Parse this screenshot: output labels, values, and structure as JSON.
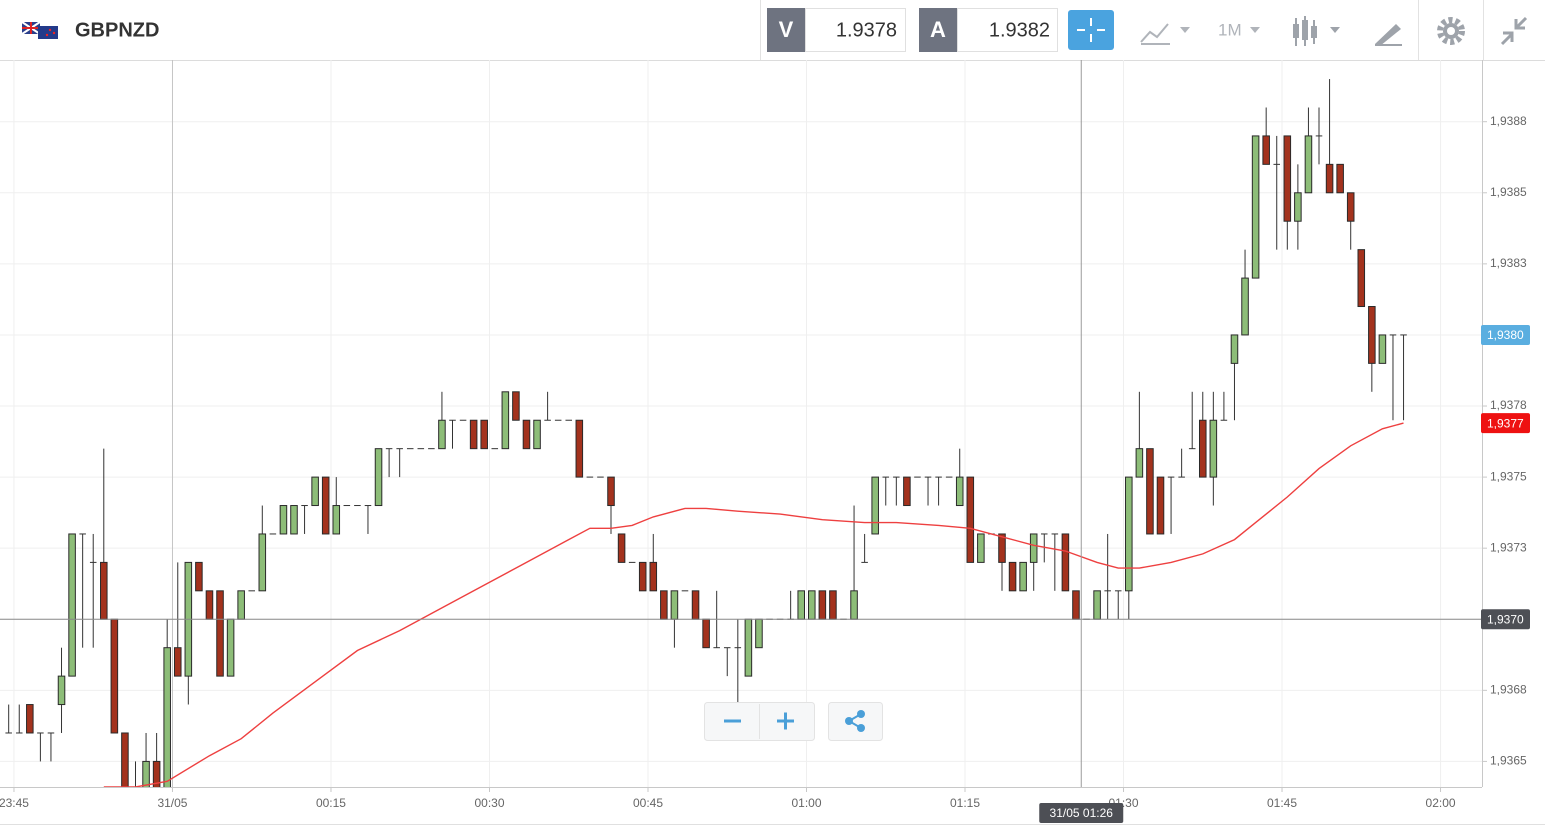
{
  "header": {
    "symbol": "GBPNZD",
    "sell_label": "V",
    "sell_price": "1.9378",
    "buy_label": "A",
    "buy_price": "1.9382",
    "interval": "1M"
  },
  "chart_data": {
    "type": "candlestick",
    "x": [
      "23:44",
      "23:45",
      "23:46",
      "23:47",
      "23:48",
      "23:49",
      "23:50",
      "23:51",
      "23:52",
      "23:53",
      "23:54",
      "23:55",
      "23:56",
      "23:57",
      "23:58",
      "23:59",
      "00:00",
      "00:01",
      "00:02",
      "00:03",
      "00:04",
      "00:05",
      "00:06",
      "00:07",
      "00:08",
      "00:09",
      "00:10",
      "00:11",
      "00:12",
      "00:13",
      "00:14",
      "00:15",
      "00:16",
      "00:17",
      "00:18",
      "00:19",
      "00:20",
      "00:21",
      "00:22",
      "00:23",
      "00:24",
      "00:25",
      "00:26",
      "00:27",
      "00:28",
      "00:29",
      "00:30",
      "00:31",
      "00:32",
      "00:33",
      "00:34",
      "00:35",
      "00:36",
      "00:37",
      "00:38",
      "00:39",
      "00:40",
      "00:41",
      "00:42",
      "00:43",
      "00:44",
      "00:45",
      "00:46",
      "00:47",
      "00:48",
      "00:49",
      "00:50",
      "00:51",
      "00:52",
      "00:53",
      "00:54",
      "00:55",
      "00:56",
      "00:57",
      "00:58",
      "00:59",
      "01:00",
      "01:01",
      "01:02",
      "01:03",
      "01:04",
      "01:05",
      "01:06",
      "01:07",
      "01:08",
      "01:09",
      "01:10",
      "01:11",
      "01:12",
      "01:13",
      "01:14",
      "01:15",
      "01:16",
      "01:17",
      "01:18",
      "01:19",
      "01:20",
      "01:21",
      "01:22",
      "01:23",
      "01:24",
      "01:25",
      "01:26",
      "01:27",
      "01:28",
      "01:29",
      "01:30",
      "01:31",
      "01:32",
      "01:33",
      "01:34",
      "01:35",
      "01:36",
      "01:37",
      "01:38",
      "01:39",
      "01:40",
      "01:41",
      "01:42",
      "01:43",
      "01:44",
      "01:45",
      "01:46",
      "01:47",
      "01:48",
      "01:49",
      "01:50",
      "01:51",
      "01:52",
      "01:53",
      "01:54",
      "01:55",
      "01:56"
    ],
    "open": [
      1.9366,
      1.9366,
      1.9367,
      1.9366,
      1.9366,
      1.9367,
      1.9368,
      1.9373,
      1.9372,
      1.9372,
      1.937,
      1.9366,
      1.9364,
      1.9364,
      1.9365,
      1.9364,
      1.9369,
      1.9368,
      1.9372,
      1.9371,
      1.9371,
      1.9368,
      1.937,
      1.9371,
      1.9371,
      1.9373,
      1.9373,
      1.9373,
      1.9374,
      1.9374,
      1.9375,
      1.9373,
      1.9374,
      1.9374,
      1.9374,
      1.9374,
      1.9376,
      1.9376,
      1.9376,
      1.9376,
      1.9376,
      1.9376,
      1.9377,
      1.9377,
      1.9377,
      1.9377,
      1.9376,
      1.9376,
      1.9378,
      1.9377,
      1.9376,
      1.9377,
      1.9377,
      1.9377,
      1.9377,
      1.9375,
      1.9375,
      1.9375,
      1.9373,
      1.9372,
      1.9372,
      1.9372,
      1.9371,
      1.937,
      1.9371,
      1.9371,
      1.937,
      1.9369,
      1.9369,
      1.9369,
      1.9368,
      1.9369,
      1.937,
      1.937,
      1.937,
      1.937,
      1.937,
      1.9371,
      1.9371,
      1.937,
      1.937,
      1.9372,
      1.9373,
      1.9375,
      1.9375,
      1.9375,
      1.9375,
      1.9375,
      1.9375,
      1.9375,
      1.9374,
      1.9375,
      1.9372,
      1.9373,
      1.9373,
      1.9372,
      1.9371,
      1.9372,
      1.9373,
      1.9373,
      1.9373,
      1.9371,
      1.937,
      1.937,
      1.9371,
      1.9371,
      1.9371,
      1.9375,
      1.9376,
      1.9375,
      1.9375,
      1.9375,
      1.9376,
      1.9377,
      1.9375,
      1.9377,
      1.9379,
      1.938,
      1.9382,
      1.9387,
      1.9386,
      1.9387,
      1.9384,
      1.9385,
      1.9387,
      1.9386,
      1.9386,
      1.9385,
      1.9383,
      1.9381,
      1.9379,
      1.938,
      1.938
    ],
    "high": [
      1.9367,
      1.9367,
      1.9367,
      1.9366,
      1.9366,
      1.9369,
      1.9373,
      1.9373,
      1.9373,
      1.9376,
      1.937,
      1.9366,
      1.9365,
      1.9366,
      1.9366,
      1.937,
      1.9372,
      1.9372,
      1.9372,
      1.9371,
      1.9371,
      1.937,
      1.9371,
      1.9371,
      1.9374,
      1.9373,
      1.9374,
      1.9374,
      1.9374,
      1.9375,
      1.9375,
      1.9375,
      1.9374,
      1.9374,
      1.9374,
      1.9376,
      1.9376,
      1.9376,
      1.9376,
      1.9376,
      1.9376,
      1.9378,
      1.9377,
      1.9377,
      1.9377,
      1.9377,
      1.9376,
      1.9378,
      1.9378,
      1.9377,
      1.9377,
      1.9378,
      1.9377,
      1.9377,
      1.9377,
      1.9375,
      1.9375,
      1.9375,
      1.9373,
      1.9372,
      1.9372,
      1.9373,
      1.9371,
      1.9371,
      1.9371,
      1.9371,
      1.937,
      1.9371,
      1.9369,
      1.937,
      1.937,
      1.937,
      1.937,
      1.937,
      1.9371,
      1.9371,
      1.9371,
      1.9371,
      1.9371,
      1.937,
      1.9374,
      1.9373,
      1.9375,
      1.9375,
      1.9375,
      1.9375,
      1.9375,
      1.9375,
      1.9375,
      1.9375,
      1.9376,
      1.9375,
      1.9373,
      1.9373,
      1.9373,
      1.9372,
      1.9372,
      1.9373,
      1.9373,
      1.9373,
      1.9373,
      1.9371,
      1.937,
      1.9371,
      1.9373,
      1.9371,
      1.9375,
      1.9378,
      1.9376,
      1.9375,
      1.9375,
      1.9376,
      1.9378,
      1.9378,
      1.9378,
      1.9378,
      1.938,
      1.9383,
      1.9387,
      1.9388,
      1.9387,
      1.9387,
      1.9386,
      1.9388,
      1.9388,
      1.9389,
      1.9386,
      1.9385,
      1.9383,
      1.9381,
      1.938,
      1.938,
      1.938
    ],
    "low": [
      1.9366,
      1.9366,
      1.9366,
      1.9365,
      1.9365,
      1.9366,
      1.9368,
      1.9369,
      1.9369,
      1.937,
      1.9366,
      1.9364,
      1.9364,
      1.9364,
      1.9364,
      1.9364,
      1.9368,
      1.9367,
      1.9371,
      1.937,
      1.9368,
      1.9368,
      1.937,
      1.9371,
      1.9371,
      1.9373,
      1.9373,
      1.9373,
      1.9373,
      1.9374,
      1.9373,
      1.9373,
      1.9374,
      1.9374,
      1.9373,
      1.9374,
      1.9375,
      1.9375,
      1.9376,
      1.9376,
      1.9376,
      1.9376,
      1.9376,
      1.9377,
      1.9376,
      1.9376,
      1.9376,
      1.9376,
      1.9377,
      1.9376,
      1.9376,
      1.9377,
      1.9377,
      1.9377,
      1.9375,
      1.9375,
      1.9375,
      1.9373,
      1.9372,
      1.9372,
      1.9371,
      1.9371,
      1.937,
      1.9369,
      1.9371,
      1.937,
      1.9369,
      1.9369,
      1.9368,
      1.9367,
      1.9368,
      1.9369,
      1.937,
      1.937,
      1.937,
      1.937,
      1.937,
      1.937,
      1.937,
      1.937,
      1.937,
      1.9372,
      1.9373,
      1.9374,
      1.9374,
      1.9374,
      1.9375,
      1.9374,
      1.9374,
      1.9375,
      1.9374,
      1.9372,
      1.9372,
      1.9373,
      1.9371,
      1.9371,
      1.9371,
      1.9371,
      1.9372,
      1.9371,
      1.9371,
      1.937,
      1.937,
      1.937,
      1.937,
      1.937,
      1.937,
      1.9375,
      1.9373,
      1.9373,
      1.9373,
      1.9375,
      1.9376,
      1.9375,
      1.9374,
      1.9377,
      1.9377,
      1.938,
      1.9382,
      1.9386,
      1.9383,
      1.9383,
      1.9383,
      1.9385,
      1.9386,
      1.9385,
      1.9385,
      1.9383,
      1.9381,
      1.9378,
      1.9379,
      1.9377,
      1.9377
    ],
    "close": [
      1.9366,
      1.9366,
      1.9366,
      1.9366,
      1.9366,
      1.9368,
      1.9373,
      1.9373,
      1.9372,
      1.937,
      1.9366,
      1.9364,
      1.9364,
      1.9365,
      1.9364,
      1.9369,
      1.9368,
      1.9372,
      1.9371,
      1.937,
      1.9368,
      1.937,
      1.9371,
      1.9371,
      1.9373,
      1.9373,
      1.9374,
      1.9374,
      1.9374,
      1.9375,
      1.9373,
      1.9374,
      1.9374,
      1.9374,
      1.9374,
      1.9376,
      1.9376,
      1.9376,
      1.9376,
      1.9376,
      1.9376,
      1.9377,
      1.9377,
      1.9377,
      1.9376,
      1.9376,
      1.9376,
      1.9378,
      1.9377,
      1.9376,
      1.9377,
      1.9377,
      1.9377,
      1.9377,
      1.9375,
      1.9375,
      1.9375,
      1.9374,
      1.9372,
      1.9372,
      1.9371,
      1.9371,
      1.937,
      1.9371,
      1.9371,
      1.937,
      1.9369,
      1.9369,
      1.9369,
      1.9369,
      1.937,
      1.937,
      1.937,
      1.937,
      1.937,
      1.9371,
      1.9371,
      1.937,
      1.937,
      1.937,
      1.9371,
      1.9372,
      1.9375,
      1.9375,
      1.9375,
      1.9374,
      1.9375,
      1.9375,
      1.9375,
      1.9375,
      1.9375,
      1.9372,
      1.9373,
      1.9373,
      1.9372,
      1.9371,
      1.9372,
      1.9373,
      1.9373,
      1.9373,
      1.9371,
      1.937,
      1.937,
      1.9371,
      1.9371,
      1.9371,
      1.9375,
      1.9376,
      1.9373,
      1.9373,
      1.9375,
      1.9375,
      1.9376,
      1.9375,
      1.9377,
      1.9377,
      1.938,
      1.9382,
      1.9387,
      1.9386,
      1.9386,
      1.9384,
      1.9385,
      1.9387,
      1.9387,
      1.9385,
      1.9385,
      1.9384,
      1.9381,
      1.9379,
      1.938,
      1.938,
      1.938
    ],
    "up_color": "#8dbd78",
    "down_color": "#a3321d",
    "ma": {
      "color": "#ee4040",
      "x": [
        "23:53",
        "23:56",
        "23:59",
        "00:03",
        "00:06",
        "00:09",
        "00:13",
        "00:17",
        "00:21",
        "00:25",
        "00:29",
        "00:33",
        "00:37",
        "00:39",
        "00:41",
        "00:43",
        "00:45",
        "00:48",
        "00:50",
        "00:53",
        "00:57",
        "01:01",
        "01:05",
        "01:08",
        "01:12",
        "01:15",
        "01:18",
        "01:21",
        "01:24",
        "01:27",
        "01:29",
        "01:31",
        "01:34",
        "01:37",
        "01:40",
        "01:42",
        "01:45",
        "01:48",
        "01:51",
        "01:54",
        "01:56"
      ],
      "values": [
        1.93641,
        1.93641,
        1.93643,
        1.93652,
        1.93658,
        1.93667,
        1.93678,
        1.93689,
        1.93696,
        1.93704,
        1.93712,
        1.9372,
        1.93728,
        1.93732,
        1.93732,
        1.93733,
        1.93736,
        1.93739,
        1.93739,
        1.93738,
        1.93737,
        1.93735,
        1.93734,
        1.93734,
        1.93733,
        1.93732,
        1.93729,
        1.93726,
        1.93724,
        1.9372,
        1.93718,
        1.93718,
        1.9372,
        1.93723,
        1.93728,
        1.93734,
        1.93743,
        1.93753,
        1.93761,
        1.93767,
        1.93769
      ],
      "last_label": "1,9377"
    },
    "last_price": {
      "value": 1.938,
      "label": "1,9380",
      "color": "#5aaee0"
    },
    "crosshair": {
      "y": {
        "value": 1.937,
        "label": "1,9370"
      },
      "x": {
        "value": "01:26",
        "label": "31/05 01:26"
      }
    },
    "xlim": [
      "23:44",
      "02:04"
    ],
    "xticks": [
      "23:45",
      {
        "value": "00:00",
        "label": "31/05"
      },
      "00:15",
      "00:30",
      "00:45",
      "01:00",
      "01:15",
      "01:30",
      "01:45",
      "02:00"
    ],
    "ylim": [
      1.93641,
      1.93896
    ],
    "yticks": [
      {
        "value": 1.9365,
        "label": "1,9365"
      },
      {
        "value": 1.93675,
        "label": "1,9368"
      },
      {
        "value": 1.937,
        "label": "1,9370"
      },
      {
        "value": 1.93725,
        "label": "1,9373"
      },
      {
        "value": 1.9375,
        "label": "1,9375"
      },
      {
        "value": 1.93775,
        "label": "1,9378"
      },
      {
        "value": 1.938,
        "label": "1,9380"
      },
      {
        "value": 1.93825,
        "label": "1,9383"
      },
      {
        "value": 1.9385,
        "label": "1,9385"
      },
      {
        "value": 1.93875,
        "label": "1,9388"
      }
    ],
    "grid": true
  }
}
